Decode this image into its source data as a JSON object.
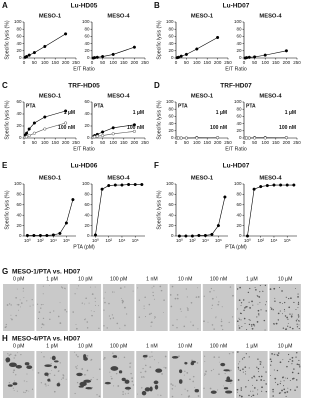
{
  "chart_data": [
    {
      "label": "A",
      "title": "Lu-HD05",
      "type": "line",
      "ylabel": "Specific lysis (%)",
      "xlabel": "E/T Ratio",
      "subplots": [
        {
          "title": "MESO-1",
          "x": [
            6.25,
            12.5,
            25,
            50,
            100,
            200
          ],
          "xlim": [
            0,
            250
          ],
          "xticks": [
            0,
            50,
            100,
            150,
            200,
            250
          ],
          "ylim": [
            0,
            100
          ],
          "yticks": [
            0,
            20,
            40,
            60,
            80,
            100
          ],
          "series": [
            {
              "color": "#000000",
              "marker_fill": "#000000",
              "values": [
                2,
                4,
                8,
                15,
                32,
                67
              ]
            }
          ]
        },
        {
          "title": "MESO-4",
          "x": [
            6.25,
            12.5,
            25,
            50,
            100,
            200
          ],
          "xlim": [
            0,
            250
          ],
          "xticks": [
            0,
            50,
            100,
            150,
            200,
            250
          ],
          "ylim": [
            0,
            100
          ],
          "yticks": [
            0,
            20,
            40,
            60,
            80,
            100
          ],
          "series": [
            {
              "color": "#000000",
              "marker_fill": "#000000",
              "values": [
                0,
                1,
                2,
                4,
                10,
                30
              ]
            }
          ]
        }
      ]
    },
    {
      "label": "B",
      "title": "Lu-HD07",
      "type": "line",
      "ylabel": "Specific lysis (%)",
      "xlabel": "E/T Ratio",
      "subplots": [
        {
          "title": "MESO-1",
          "x": [
            6.25,
            12.5,
            25,
            50,
            100,
            200
          ],
          "xlim": [
            0,
            250
          ],
          "xticks": [
            0,
            50,
            100,
            150,
            200,
            250
          ],
          "ylim": [
            0,
            100
          ],
          "yticks": [
            0,
            20,
            40,
            60,
            80,
            100
          ],
          "series": [
            {
              "color": "#000000",
              "marker_fill": "#000000",
              "values": [
                1,
                2,
                5,
                10,
                25,
                57
              ]
            }
          ]
        },
        {
          "title": "MESO-4",
          "x": [
            6.25,
            12.5,
            25,
            50,
            100,
            200
          ],
          "xlim": [
            0,
            250
          ],
          "xticks": [
            0,
            50,
            100,
            150,
            200,
            250
          ],
          "ylim": [
            0,
            100
          ],
          "yticks": [
            0,
            20,
            40,
            60,
            80,
            100
          ],
          "series": [
            {
              "color": "#000000",
              "marker_fill": "#000000",
              "values": [
                0,
                1,
                2,
                3,
                8,
                20
              ]
            }
          ]
        }
      ]
    },
    {
      "label": "C",
      "title": "TRF-HD05",
      "type": "line",
      "ylabel": "Specific lysis (%)",
      "xlabel": "E/T Ratio",
      "subplots": [
        {
          "title": "MESO-1",
          "annotation": "PTA",
          "x": [
            6.25,
            12.5,
            25,
            50,
            100,
            200
          ],
          "xlim": [
            0,
            250
          ],
          "xticks": [
            0,
            50,
            100,
            150,
            200,
            250
          ],
          "ylim": [
            0,
            60
          ],
          "yticks": [
            0,
            20,
            40,
            60
          ],
          "series": [
            {
              "name": "1 µM",
              "color": "#000000",
              "marker_fill": "#000000",
              "values": [
                5,
                8,
                15,
                25,
                35,
                45
              ]
            },
            {
              "name": "100 nM",
              "color": "#555555",
              "marker_fill": "#ffffff",
              "values": [
                1,
                2,
                4,
                8,
                15,
                25
              ]
            }
          ]
        },
        {
          "title": "MESO-4",
          "annotation": "PTA",
          "x": [
            6.25,
            12.5,
            25,
            50,
            100,
            200
          ],
          "xlim": [
            0,
            250
          ],
          "xticks": [
            0,
            50,
            100,
            150,
            200,
            250
          ],
          "ylim": [
            0,
            60
          ],
          "yticks": [
            0,
            20,
            40,
            60
          ],
          "series": [
            {
              "name": "1 µM",
              "color": "#000000",
              "marker_fill": "#000000",
              "values": [
                2,
                4,
                6,
                10,
                17,
                22
              ]
            },
            {
              "name": "100 nM",
              "color": "#555555",
              "marker_fill": "#ffffff",
              "values": [
                1,
                2,
                3,
                4,
                7,
                11
              ]
            }
          ]
        }
      ]
    },
    {
      "label": "D",
      "title": "TRF-HD07",
      "type": "line",
      "ylabel": "Specific lysis (%)",
      "xlabel": "E/T Ratio",
      "subplots": [
        {
          "title": "MESO-1",
          "annotation": "PTA",
          "x": [
            6.25,
            12.5,
            25,
            50,
            100,
            200
          ],
          "xlim": [
            0,
            250
          ],
          "xticks": [
            0,
            50,
            100,
            150,
            200,
            250
          ],
          "ylim": [
            0,
            100
          ],
          "yticks": [
            0,
            20,
            40,
            60,
            80,
            100
          ],
          "series": [
            {
              "name": "1 µM",
              "color": "#000000",
              "marker_fill": "#000000",
              "values": [
                0,
                0,
                0,
                0,
                1,
                1
              ]
            },
            {
              "name": "100 nM",
              "color": "#555555",
              "marker_fill": "#ffffff",
              "values": [
                0,
                0,
                0,
                0,
                0,
                1
              ]
            }
          ]
        },
        {
          "title": "MESO-4",
          "annotation": "PTA",
          "x": [
            6.25,
            12.5,
            25,
            50,
            100,
            200
          ],
          "xlim": [
            0,
            250
          ],
          "xticks": [
            0,
            50,
            100,
            150,
            200,
            250
          ],
          "ylim": [
            0,
            100
          ],
          "yticks": [
            0,
            20,
            40,
            60,
            80,
            100
          ],
          "series": [
            {
              "name": "1 µM",
              "color": "#000000",
              "marker_fill": "#000000",
              "values": [
                0,
                0,
                0,
                1,
                1,
                1
              ]
            },
            {
              "name": "100 nM",
              "color": "#555555",
              "marker_fill": "#ffffff",
              "values": [
                0,
                0,
                0,
                0,
                0,
                1
              ]
            }
          ]
        }
      ]
    },
    {
      "label": "E",
      "title": "Lu-HD06",
      "type": "line",
      "log_x": true,
      "ylabel": "Specific lysis (%)",
      "xlabel": "PTA (pM)",
      "subplots": [
        {
          "title": "MESO-1",
          "x": [
            1,
            10,
            100,
            1000,
            10000,
            100000,
            1000000,
            10000000
          ],
          "xlim": [
            0.3,
            30000000
          ],
          "xticks": [
            {
              "value": 1,
              "label": "10⁰"
            },
            {
              "value": 100,
              "label": "10²"
            },
            {
              "value": 10000,
              "label": "10⁴"
            },
            {
              "value": 1000000,
              "label": "10⁶"
            }
          ],
          "ylim": [
            0,
            100
          ],
          "yticks": [
            0,
            20,
            40,
            60,
            80,
            100
          ],
          "series": [
            {
              "color": "#000000",
              "marker_fill": "#000000",
              "values": [
                1,
                1,
                1,
                1,
                2,
                5,
                25,
                70
              ]
            }
          ]
        },
        {
          "title": "MESO-4",
          "x": [
            1,
            10,
            100,
            1000,
            10000,
            100000,
            1000000,
            10000000
          ],
          "xlim": [
            0.3,
            30000000
          ],
          "xticks": [
            {
              "value": 1,
              "label": "10⁰"
            },
            {
              "value": 100,
              "label": "10²"
            },
            {
              "value": 10000,
              "label": "10⁴"
            },
            {
              "value": 1000000,
              "label": "10⁶"
            }
          ],
          "ylim": [
            0,
            100
          ],
          "yticks": [
            0,
            20,
            40,
            60,
            80,
            100
          ],
          "series": [
            {
              "color": "#000000",
              "marker_fill": "#000000",
              "values": [
                2,
                90,
                97,
                98,
                98,
                99,
                99,
                99
              ]
            }
          ]
        }
      ]
    },
    {
      "label": "F",
      "title": "Lu-HD07",
      "type": "line",
      "log_x": true,
      "ylabel": "Specific lysis (%)",
      "xlabel": "PTA (pM)",
      "subplots": [
        {
          "title": "MESO-1",
          "x": [
            1,
            10,
            100,
            1000,
            10000,
            100000,
            1000000,
            10000000
          ],
          "xlim": [
            0.3,
            30000000
          ],
          "xticks": [
            {
              "value": 1,
              "label": "10⁰"
            },
            {
              "value": 100,
              "label": "10²"
            },
            {
              "value": 10000,
              "label": "10⁴"
            },
            {
              "value": 1000000,
              "label": "10⁶"
            }
          ],
          "ylim": [
            0,
            100
          ],
          "yticks": [
            0,
            20,
            40,
            60,
            80,
            100
          ],
          "series": [
            {
              "color": "#000000",
              "marker_fill": "#000000",
              "values": [
                0,
                0,
                0,
                1,
                1,
                3,
                20,
                75
              ]
            }
          ]
        },
        {
          "title": "MESO-4",
          "x": [
            1,
            10,
            100,
            1000,
            10000,
            100000,
            1000000,
            10000000
          ],
          "xlim": [
            0.3,
            30000000
          ],
          "xticks": [
            {
              "value": 1,
              "label": "10⁰"
            },
            {
              "value": 100,
              "label": "10²"
            },
            {
              "value": 10000,
              "label": "10⁴"
            },
            {
              "value": 1000000,
              "label": "10⁶"
            }
          ],
          "ylim": [
            0,
            100
          ],
          "yticks": [
            0,
            20,
            40,
            60,
            80,
            100
          ],
          "series": [
            {
              "color": "#000000",
              "marker_fill": "#000000",
              "values": [
                0,
                90,
                95,
                97,
                98,
                98,
                98,
                98
              ]
            }
          ]
        }
      ]
    }
  ],
  "image_panels": [
    {
      "label": "G",
      "title": "MESO-1/PTA vs. HD07",
      "images": [
        "0 pM",
        "1 pM",
        "10 pM",
        "100 pM",
        "1 nM",
        "10 nM",
        "100 nM",
        "1 µM",
        "10 µM"
      ]
    },
    {
      "label": "H",
      "title": "MESO-4/PTA vs. HD07",
      "images": [
        "0 pM",
        "1 pM",
        "10 pM",
        "100 pM",
        "1 nM",
        "10 nM",
        "100 nM",
        "1 µM",
        "10 µM"
      ]
    }
  ]
}
